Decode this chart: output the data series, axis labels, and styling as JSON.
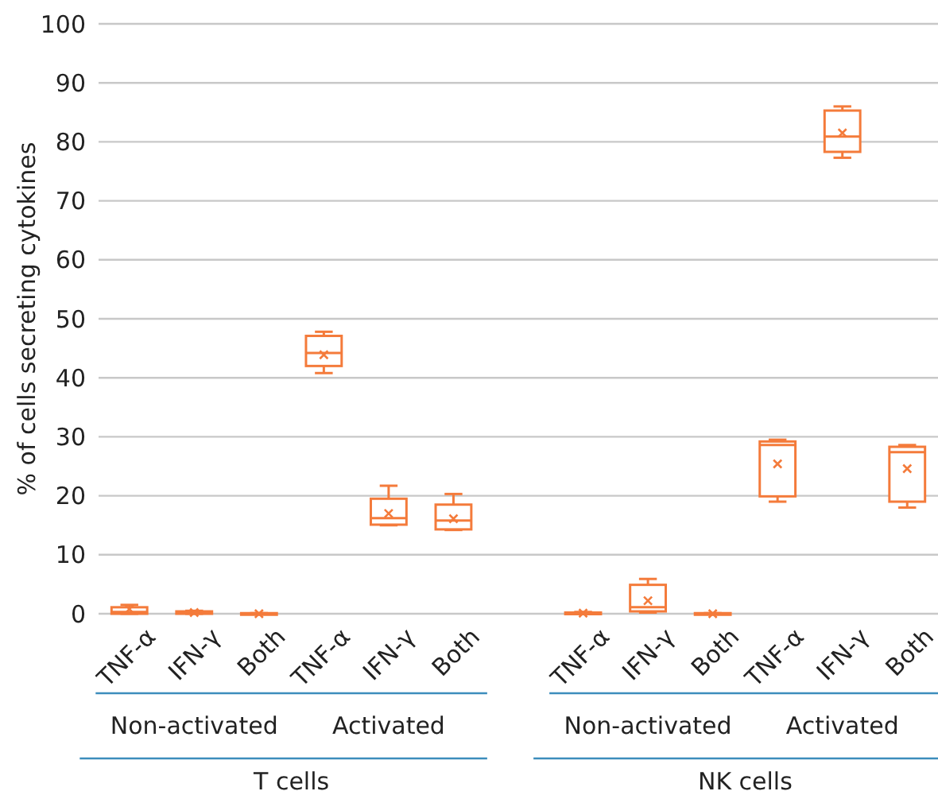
{
  "chart_data": {
    "type": "box",
    "ylabel": "% of cells secreting cytokines",
    "categories": [
      "TNF-α",
      "IFN-γ",
      "Both",
      "TNF-α",
      "IFN-γ",
      "Both",
      null,
      "TNF-α",
      "IFN-γ",
      "Both",
      "TNF-α",
      "IFN-γ",
      "Both"
    ],
    "color": "#f47b3b",
    "boxes": [
      {
        "low": 0,
        "q1": 0,
        "median": 0.3,
        "q3": 1.1,
        "high": 1.5,
        "mean": 0.8
      },
      {
        "low": 0,
        "q1": 0,
        "median": 0.1,
        "q3": 0.4,
        "high": 0.5,
        "mean": 0.2
      },
      {
        "low": 0,
        "q1": 0,
        "median": 0,
        "q3": 0.1,
        "high": 0.1,
        "mean": 0
      },
      {
        "low": 40.8,
        "q1": 42,
        "median": 44.2,
        "q3": 47.1,
        "high": 47.8,
        "mean": 43.9
      },
      {
        "low": 15,
        "q1": 15.1,
        "median": 16.2,
        "q3": 19.5,
        "high": 21.7,
        "mean": 17
      },
      {
        "low": 14.2,
        "q1": 14.3,
        "median": 15.8,
        "q3": 18.5,
        "high": 20.3,
        "mean": 16.1
      },
      null,
      {
        "low": 0,
        "q1": 0,
        "median": 0.1,
        "q3": 0.2,
        "high": 0.3,
        "mean": 0.1
      },
      {
        "low": 0.2,
        "q1": 0.4,
        "median": 1.1,
        "q3": 4.9,
        "high": 5.9,
        "mean": 2.2
      },
      {
        "low": 0,
        "q1": 0,
        "median": 0,
        "q3": 0.1,
        "high": 0.1,
        "mean": 0
      },
      {
        "low": 19,
        "q1": 19.9,
        "median": 28.6,
        "q3": 29.2,
        "high": 29.5,
        "mean": 25.4
      },
      {
        "low": 77.3,
        "q1": 78.3,
        "median": 80.9,
        "q3": 85.3,
        "high": 86,
        "mean": 81.5
      },
      {
        "low": 18,
        "q1": 19,
        "median": 27.4,
        "q3": 28.3,
        "high": 28.6,
        "mean": 24.6
      }
    ],
    "ylim": [
      0,
      100
    ],
    "yticks": [
      0,
      10,
      20,
      30,
      40,
      50,
      60,
      70,
      80,
      90,
      100
    ],
    "grid": "y",
    "annotations": [
      "Non-activated",
      "Activated",
      "T cells",
      "Non-activated",
      "Activated",
      "NK cells"
    ]
  }
}
